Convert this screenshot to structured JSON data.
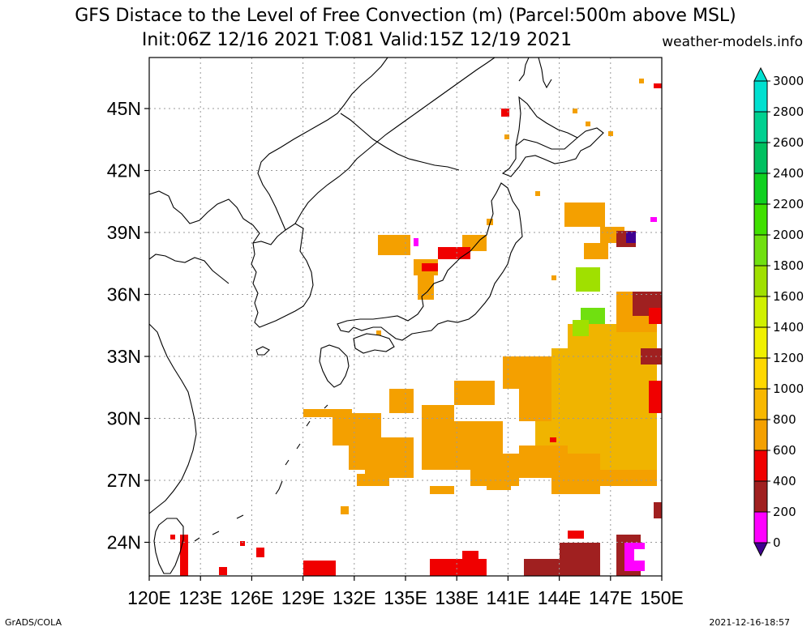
{
  "header": {
    "title_line1": "GFS Distace to the Level of Free Convection (m) (Parcel:500m above MSL)",
    "title_line2": "Init:06Z 12/16 2021 T:081 Valid:15Z 12/19 2021",
    "site": "weather-models.info"
  },
  "footer": {
    "left": "GrADS/COLA",
    "right": "2021-12-16-18:57"
  },
  "map": {
    "lat_labels": [
      "45N",
      "42N",
      "39N",
      "36N",
      "33N",
      "30N",
      "27N",
      "24N"
    ],
    "lon_labels": [
      "120E",
      "123E",
      "126E",
      "129E",
      "132E",
      "135E",
      "138E",
      "141E",
      "144E",
      "147E",
      "150E"
    ]
  },
  "colorbar": {
    "labels": [
      "3000",
      "2800",
      "2600",
      "2400",
      "2200",
      "2000",
      "1800",
      "1600",
      "1400",
      "1200",
      "1000",
      "800",
      "600",
      "400",
      "200",
      "0"
    ],
    "colors": [
      "#00e0d0",
      "#00d090",
      "#00c060",
      "#10d020",
      "#40e000",
      "#70e010",
      "#a0e000",
      "#d0f000",
      "#f0f000",
      "#ffd800",
      "#f8b800",
      "#f4a000",
      "#f00000",
      "#a02020",
      "#ff00ff",
      "#400090"
    ]
  }
}
